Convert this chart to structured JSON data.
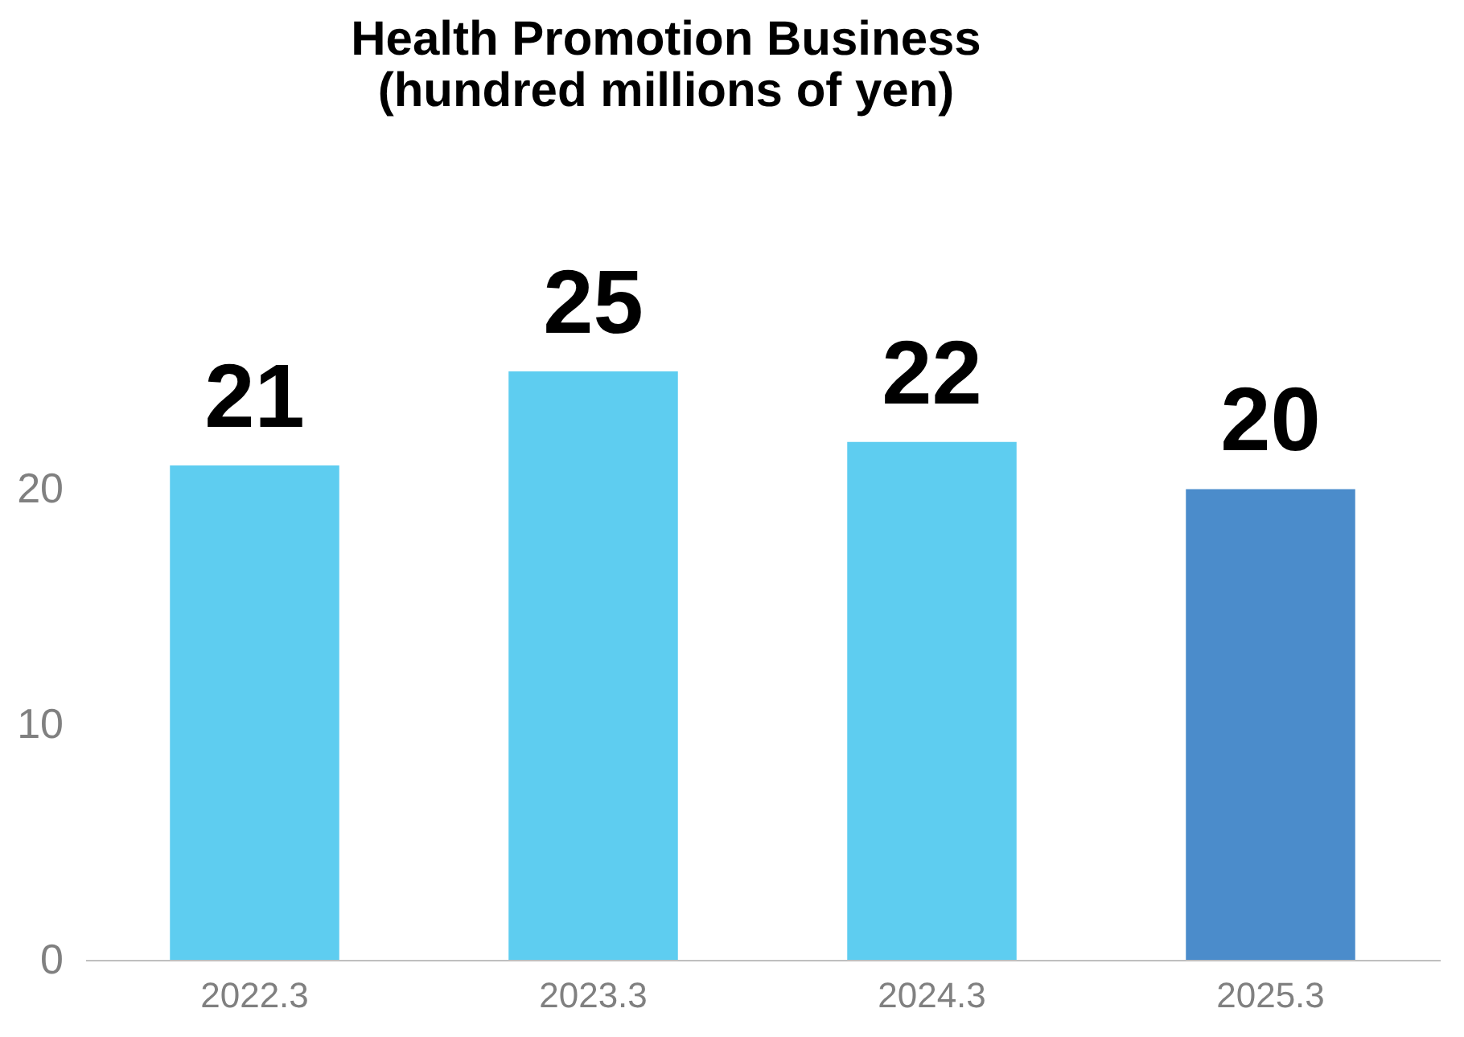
{
  "chart_data": {
    "type": "bar",
    "title": [
      "Health Promotion Business",
      "(hundred millions of yen)"
    ],
    "categories": [
      "2022.3",
      "2023.3",
      "2024.3",
      "2025.3"
    ],
    "values": [
      21,
      25,
      22,
      20
    ],
    "colors": [
      "#5ecdf0",
      "#5ecdf0",
      "#5ecdf0",
      "#4b8ccb"
    ],
    "ylim": [
      0,
      25
    ],
    "yticks": [
      0,
      10,
      20
    ],
    "grid": false,
    "data_labels": true
  }
}
